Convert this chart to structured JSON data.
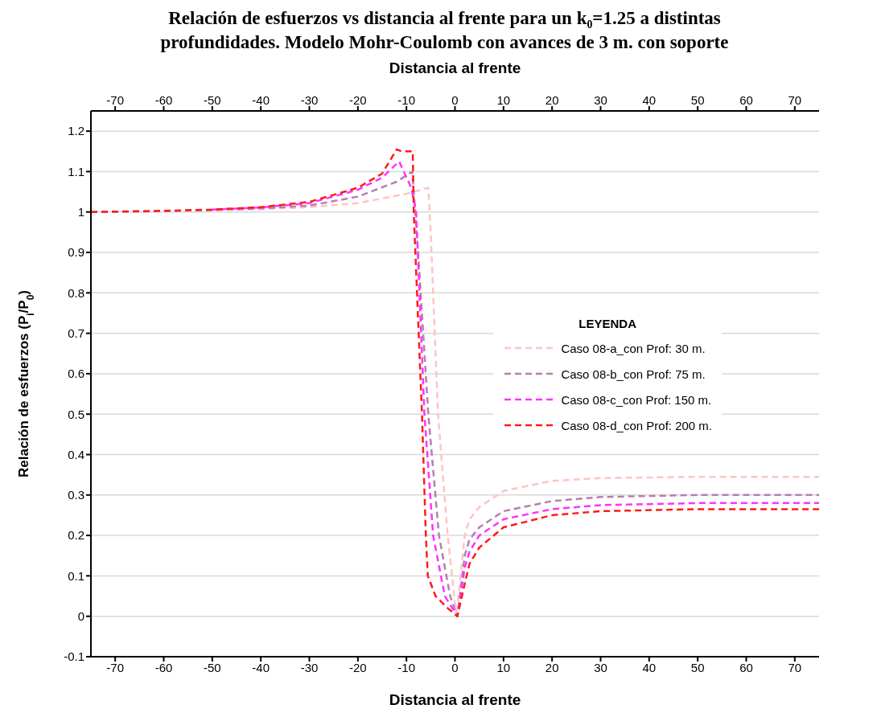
{
  "chart_data": {
    "type": "line",
    "title": "Relación de esfuerzos vs distancia al frente para un k₀=1.25 a distintas profundidades. Modelo Mohr-Coulomb con avances de 3 m. con soporte",
    "xlabel": "Distancia al frente",
    "x2label": "Distancia al frente",
    "ylabel": "Relación de esfuerzos (P$_{i}$/P$_{0}$)",
    "legend_title": "LEYENDA",
    "legend": "right",
    "grid": "y",
    "line_style": "dashed",
    "marker": "none",
    "xlim": [
      -75,
      75
    ],
    "x2lim": [
      -75,
      75
    ],
    "xticks": [
      -70,
      -60,
      -50,
      -40,
      -30,
      -20,
      -10,
      0,
      10,
      20,
      30,
      40,
      50,
      60,
      70
    ],
    "x2ticks": [
      -70,
      -60,
      -50,
      -40,
      -30,
      -20,
      -10,
      0,
      10,
      20,
      30,
      40,
      50,
      60,
      70
    ],
    "ylim": [
      -0.1,
      1.25
    ],
    "yticks": [
      -0.1,
      0,
      0.1,
      0.2,
      0.3,
      0.4,
      0.5,
      0.6,
      0.7,
      0.8,
      0.9,
      1,
      1.1,
      1.2
    ],
    "series": [
      {
        "name": "Caso 08-a_con Prof: 30 m.",
        "color": "#ffc4c4",
        "x": [
          -75,
          -60,
          -50,
          -40,
          -30,
          -20,
          -10,
          -5.5,
          -5,
          -3.5,
          -1.5,
          0.3,
          2,
          3,
          5,
          10,
          20,
          30,
          50,
          75
        ],
        "values": [
          1,
          1.002,
          1.004,
          1.007,
          1.012,
          1.022,
          1.045,
          1.06,
          0.95,
          0.5,
          0.2,
          0,
          0.2,
          0.24,
          0.27,
          0.31,
          0.335,
          0.342,
          0.345,
          0.345
        ]
      },
      {
        "name": "Caso 08-b_con Prof: 75 m.",
        "color": "#b57fb0",
        "x": [
          -75,
          -60,
          -50,
          -40,
          -30,
          -20,
          -12,
          -8.8,
          -7.6,
          -5.5,
          -3.3,
          -1,
          0.5,
          2,
          3,
          5,
          10,
          20,
          30,
          50,
          75
        ],
        "values": [
          1,
          1.002,
          1.005,
          1.009,
          1.016,
          1.038,
          1.075,
          1.1,
          0.9,
          0.5,
          0.2,
          0.05,
          0,
          0.15,
          0.19,
          0.22,
          0.26,
          0.285,
          0.295,
          0.3,
          0.3
        ]
      },
      {
        "name": "Caso 08-c_con Prof: 150 m.",
        "color": "#ff33ff",
        "x": [
          -50,
          -40,
          -30,
          -20,
          -15,
          -11.5,
          -9,
          -8,
          -6.3,
          -4.5,
          -2.1,
          0.5,
          2,
          3,
          5,
          10,
          20,
          30,
          50,
          75
        ],
        "values": [
          1.006,
          1.011,
          1.022,
          1.055,
          1.085,
          1.125,
          1.06,
          1,
          0.5,
          0.2,
          0.05,
          0,
          0.12,
          0.16,
          0.2,
          0.24,
          0.265,
          0.275,
          0.28,
          0.28
        ]
      },
      {
        "name": "Caso 08-d_con Prof: 200 m.",
        "color": "#ff1a1a",
        "x": [
          -75,
          -60,
          -50,
          -40,
          -30,
          -20,
          -15,
          -12,
          -11,
          -8.7,
          -8.5,
          -6.8,
          -6,
          -5.6,
          -4,
          -1.5,
          0.5,
          2,
          3,
          5,
          10,
          20,
          30,
          50,
          75
        ],
        "values": [
          1,
          1.003,
          1.006,
          1.012,
          1.025,
          1.06,
          1.095,
          1.155,
          1.15,
          1.15,
          1,
          0.5,
          0.2,
          0.1,
          0.05,
          0.02,
          0,
          0.08,
          0.13,
          0.17,
          0.22,
          0.25,
          0.26,
          0.265,
          0.265
        ]
      }
    ]
  }
}
